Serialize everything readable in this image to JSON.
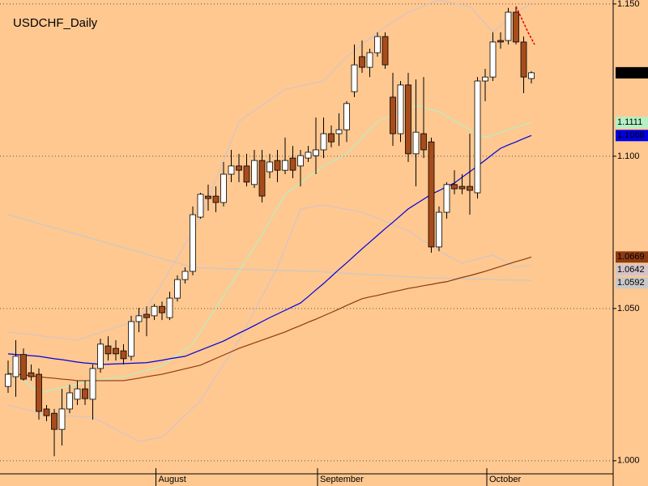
{
  "chart_data": {
    "type": "candlestick",
    "title": "USDCHF_Daily",
    "categories": [
      null,
      null,
      null,
      null,
      null,
      null,
      null,
      null,
      null,
      null,
      null,
      null,
      null,
      null,
      null,
      null,
      null,
      null,
      null,
      "August",
      null,
      null,
      null,
      null,
      null,
      null,
      null,
      null,
      null,
      null,
      null,
      null,
      null,
      null,
      null,
      null,
      null,
      null,
      null,
      null,
      "September",
      null,
      null,
      null,
      null,
      null,
      null,
      null,
      null,
      null,
      null,
      null,
      null,
      null,
      null,
      null,
      null,
      null,
      null,
      null,
      null,
      null,
      "October",
      null,
      null,
      null,
      null,
      null,
      null
    ],
    "open": [
      1.0244,
      1.0276,
      1.0349,
      1.0289,
      1.0284,
      1.017,
      1.0156,
      1.0103,
      1.017,
      1.0202,
      1.0236,
      1.0202,
      1.0303,
      1.0377,
      1.0369,
      1.0361,
      1.0343,
      1.0457,
      1.0481,
      1.0476,
      1.0507,
      1.047,
      1.0534,
      1.0595,
      1.0622,
      1.08,
      1.0869,
      1.0869,
      1.0848,
      1.0941,
      1.0968,
      1.0968,
      1.0907,
      1.0986,
      1.0949,
      1.0986,
      1.0954,
      1.0994,
      1.0968,
      1.0994,
      1.1002,
      1.1021,
      1.1074,
      1.1074,
      1.1087,
      1.1212,
      1.1327,
      1.1292,
      1.134,
      1.1393,
      1.1194,
      1.1074,
      1.1234,
      1.1008,
      1.1074,
      1.1047,
      1.0702,
      1.0816,
      1.0907,
      1.0901,
      1.0901,
      1.088,
      1.1247,
      1.126,
      1.138,
      1.138,
      1.1473,
      1.1375,
      1.1255
    ],
    "high": [
      1.0329,
      1.0396,
      1.0369,
      1.0316,
      1.0303,
      1.0183,
      1.017,
      1.0236,
      1.025,
      1.0263,
      1.0263,
      1.0316,
      1.0401,
      1.0409,
      1.0396,
      1.0383,
      1.0476,
      1.0502,
      1.0507,
      1.0515,
      1.0523,
      1.0555,
      1.0609,
      1.0635,
      1.0835,
      1.088,
      1.0907,
      1.0901,
      1.0981,
      1.1021,
      1.1008,
      1.1008,
      1.1021,
      1.1021,
      1.1008,
      1.1021,
      1.1061,
      1.1034,
      1.1021,
      1.1034,
      1.1127,
      1.1127,
      1.1101,
      1.1141,
      1.1181,
      1.1367,
      1.138,
      1.1353,
      1.1407,
      1.1407,
      1.1274,
      1.1247,
      1.1274,
      1.1252,
      1.126,
      1.1061,
      1.0835,
      1.0915,
      1.0954,
      1.0941,
      1.1074,
      1.126,
      1.1287,
      1.1407,
      1.1407,
      1.1487,
      1.1492,
      1.1393,
      1.1279
    ],
    "low": [
      1.0223,
      1.021,
      1.0263,
      1.0263,
      1.0135,
      1.013,
      1.0015,
      1.005,
      1.0156,
      1.0183,
      1.0183,
      1.0135,
      1.0289,
      1.0329,
      1.0329,
      1.0316,
      1.0329,
      1.0422,
      1.0409,
      1.0462,
      1.0462,
      1.0462,
      1.0523,
      1.0582,
      1.0609,
      1.0795,
      1.0821,
      1.0816,
      1.0835,
      1.0915,
      1.0915,
      1.0901,
      1.0896,
      1.0848,
      1.0928,
      1.0915,
      1.0941,
      1.0928,
      1.0901,
      1.0981,
      1.0941,
      1.0994,
      1.1029,
      1.1034,
      1.1047,
      1.1194,
      1.1274,
      1.126,
      1.1327,
      1.1287,
      1.1034,
      1.1047,
      1.0981,
      1.0901,
      1.0994,
      1.0683,
      1.0688,
      1.0795,
      1.0875,
      1.0875,
      1.0808,
      1.0861,
      1.1181,
      1.1247,
      1.1353,
      1.1367,
      1.1367,
      1.1207,
      1.1239
    ],
    "close": [
      1.0284,
      1.0343,
      1.0268,
      1.0276,
      1.0162,
      1.0148,
      1.0103,
      1.017,
      1.0223,
      1.0236,
      1.0204,
      1.0303,
      1.0383,
      1.0351,
      1.0351,
      1.0335,
      1.0457,
      1.0476,
      1.047,
      1.0507,
      1.0486,
      1.0534,
      1.0595,
      1.0622,
      1.0808,
      1.0875,
      1.0861,
      1.0848,
      1.0941,
      1.0968,
      1.0954,
      1.0915,
      1.0986,
      1.0869,
      1.0981,
      1.0954,
      1.0986,
      1.0954,
      1.1002,
      1.1013,
      1.1021,
      1.1074,
      1.1047,
      1.1087,
      1.1173,
      1.13,
      1.1292,
      1.134,
      1.1393,
      1.13,
      1.1074,
      1.1234,
      1.1008,
      1.1079,
      1.1021,
      1.0702,
      1.0816,
      1.0907,
      1.0893,
      1.0893,
      1.0888,
      1.1247,
      1.126,
      1.1375,
      1.1375,
      1.1473,
      1.1375,
      1.126,
      1.1274
    ],
    "up_color": "#ffffff",
    "down_color": "#a84c1c",
    "close_label_color": "#000000",
    "series": [
      {
        "color": "#c8c8c8",
        "last_label": true,
        "values": [
          1.0808,
          1.0801,
          1.0794,
          1.0786,
          1.0779,
          1.0772,
          1.0765,
          1.0758,
          1.075,
          1.0743,
          1.0736,
          1.0729,
          1.0722,
          1.0714,
          1.0707,
          1.07,
          1.0693,
          1.0686,
          1.0678,
          1.0671,
          1.0664,
          1.0657,
          1.065,
          1.0642,
          1.0635,
          1.0634,
          1.0633,
          1.0632,
          1.0631,
          1.063,
          1.0629,
          1.0628,
          1.0628,
          1.0627,
          1.0626,
          1.0625,
          1.0624,
          1.0624,
          1.0623,
          1.0622,
          1.0622,
          1.062,
          1.0619,
          1.0617,
          1.0616,
          1.0614,
          1.0613,
          1.0611,
          1.061,
          1.0608,
          1.0607,
          1.0605,
          1.0604,
          1.0602,
          1.0601,
          1.06,
          1.06,
          1.0599,
          1.0598,
          1.0598,
          1.0597,
          1.0596,
          1.0596,
          1.0595,
          1.0594,
          1.0594,
          1.0593,
          1.0593,
          1.0592
        ]
      },
      {
        "color": "#d4c4c8",
        "last_label": true,
        "values": [
          1.0183,
          1.0177,
          1.017,
          1.0164,
          1.0157,
          1.0151,
          1.015,
          1.0148,
          1.0147,
          1.0146,
          1.0144,
          1.0143,
          1.013,
          1.0116,
          1.0103,
          1.009,
          1.0077,
          1.0064,
          1.0068,
          1.0073,
          1.0077,
          1.0101,
          1.0125,
          1.0149,
          1.0173,
          1.0197,
          1.0237,
          1.0277,
          1.0316,
          1.0356,
          1.0396,
          1.0444,
          1.0492,
          1.0539,
          1.0587,
          1.0635,
          1.0699,
          1.0763,
          1.0827,
          1.0831,
          1.0836,
          1.084,
          1.0835,
          1.083,
          1.0826,
          1.0821,
          1.0816,
          1.0806,
          1.0796,
          1.0786,
          1.0775,
          1.0765,
          1.0755,
          1.0739,
          1.0722,
          1.0706,
          1.0689,
          1.0676,
          1.0662,
          1.0649,
          1.0656,
          1.0662,
          1.0669,
          1.0675,
          1.0662,
          1.0648,
          1.0635,
          1.0639,
          1.0642
        ]
      },
      {
        "color": "#d4c4c8",
        "values": [
          1.0423,
          1.042,
          1.0417,
          1.0414,
          1.0411,
          1.0408,
          1.0405,
          1.0402,
          1.0399,
          1.0396,
          1.0404,
          1.0413,
          1.0421,
          1.043,
          1.0438,
          1.0446,
          1.0455,
          1.0463,
          1.0503,
          1.0542,
          1.0582,
          1.0625,
          1.0667,
          1.071,
          1.0752,
          1.0795,
          1.0859,
          1.0923,
          1.0986,
          1.105,
          1.1114,
          1.1132,
          1.1149,
          1.1167,
          1.1185,
          1.1202,
          1.122,
          1.1225,
          1.1231,
          1.1236,
          1.1242,
          1.1247,
          1.1274,
          1.13,
          1.1327,
          1.1347,
          1.1367,
          1.1387,
          1.1407,
          1.1424,
          1.144,
          1.1457,
          1.1473,
          1.1483,
          1.1493,
          1.1503,
          1.1513,
          1.1508,
          1.1502,
          1.1497,
          1.1492,
          1.1464,
          1.1435,
          1.1407,
          1.1429,
          1.1451,
          1.1473,
          1.1487,
          1.15
        ]
      },
      {
        "color": "#b4f0c4",
        "last_label": true,
        "values": [
          1.0303,
          1.0283,
          1.0263,
          1.0243,
          1.0223,
          1.0229,
          1.0234,
          1.024,
          1.0246,
          1.0252,
          1.0257,
          1.0263,
          1.0266,
          1.027,
          1.0273,
          1.0276,
          1.0283,
          1.029,
          1.0297,
          1.0304,
          1.0311,
          1.0329,
          1.0347,
          1.0365,
          1.0383,
          1.0423,
          1.0463,
          1.0502,
          1.0542,
          1.0582,
          1.0622,
          1.0662,
          1.0702,
          1.0742,
          1.0786,
          1.0831,
          1.0875,
          1.0894,
          1.0912,
          1.0931,
          1.0949,
          1.0968,
          1.0981,
          1.0995,
          1.1008,
          1.1035,
          1.1061,
          1.1088,
          1.1114,
          1.1125,
          1.1135,
          1.1146,
          1.1156,
          1.1167,
          1.116,
          1.1153,
          1.1146,
          1.1131,
          1.1117,
          1.1102,
          1.1087,
          1.1074,
          1.1061,
          1.107,
          1.1078,
          1.1087,
          1.1095,
          1.1103,
          1.1111
        ]
      },
      {
        "color": "#8b3a12",
        "last_label": true,
        "values": [
          1.0287,
          1.0284,
          1.0282,
          1.0279,
          1.0276,
          1.0273,
          1.0271,
          1.0268,
          1.0266,
          1.0263,
          1.0263,
          1.0263,
          1.0263,
          1.0263,
          1.0263,
          1.0263,
          1.0267,
          1.0271,
          1.0276,
          1.028,
          1.0284,
          1.029,
          1.0296,
          1.0302,
          1.0308,
          1.0314,
          1.0325,
          1.0336,
          1.0347,
          1.0358,
          1.0369,
          1.0378,
          1.0387,
          1.0396,
          1.0405,
          1.0414,
          1.0423,
          1.0434,
          1.0444,
          1.0455,
          1.0465,
          1.0476,
          1.0487,
          1.0498,
          1.051,
          1.0521,
          1.0532,
          1.0538,
          1.0543,
          1.0549,
          1.0555,
          1.056,
          1.0566,
          1.057,
          1.0575,
          1.0579,
          1.0584,
          1.0588,
          1.0595,
          1.0602,
          1.0608,
          1.0615,
          1.0622,
          1.063,
          1.0638,
          1.0646,
          1.0654,
          1.0661,
          1.0669
        ]
      },
      {
        "color": "#0000e0",
        "last_label": true,
        "values": [
          1.0351,
          1.0349,
          1.0347,
          1.0345,
          1.0343,
          1.0339,
          1.0335,
          1.0332,
          1.0328,
          1.0324,
          1.0321,
          1.0319,
          1.0316,
          1.0317,
          1.0318,
          1.0319,
          1.032,
          1.0321,
          1.0322,
          1.0326,
          1.033,
          1.0335,
          1.0339,
          1.0343,
          1.0353,
          1.0363,
          1.0373,
          1.0383,
          1.0393,
          1.0406,
          1.0419,
          1.0431,
          1.0444,
          1.0457,
          1.047,
          1.0482,
          1.0494,
          1.0506,
          1.0518,
          1.0539,
          1.0561,
          1.0582,
          1.0605,
          1.0628,
          1.065,
          1.0673,
          1.0696,
          1.0718,
          1.074,
          1.0762,
          1.0783,
          1.0805,
          1.0827,
          1.0843,
          1.0859,
          1.0875,
          1.0887,
          1.09,
          1.0912,
          1.0931,
          1.0949,
          1.0968,
          1.0987,
          1.1007,
          1.1026,
          1.1037,
          1.1047,
          1.1058,
          1.1068
        ]
      }
    ],
    "ylim": [
      0.9957,
      1.1513
    ],
    "yticks": [
      {
        "value": 1,
        "label": "1.000"
      },
      {
        "value": 1.05,
        "label": "1.050"
      },
      {
        "value": 1.1,
        "label": "1.100"
      },
      {
        "value": 1.15,
        "label": "1.150"
      }
    ],
    "grid": true,
    "background": "#ffc890"
  }
}
